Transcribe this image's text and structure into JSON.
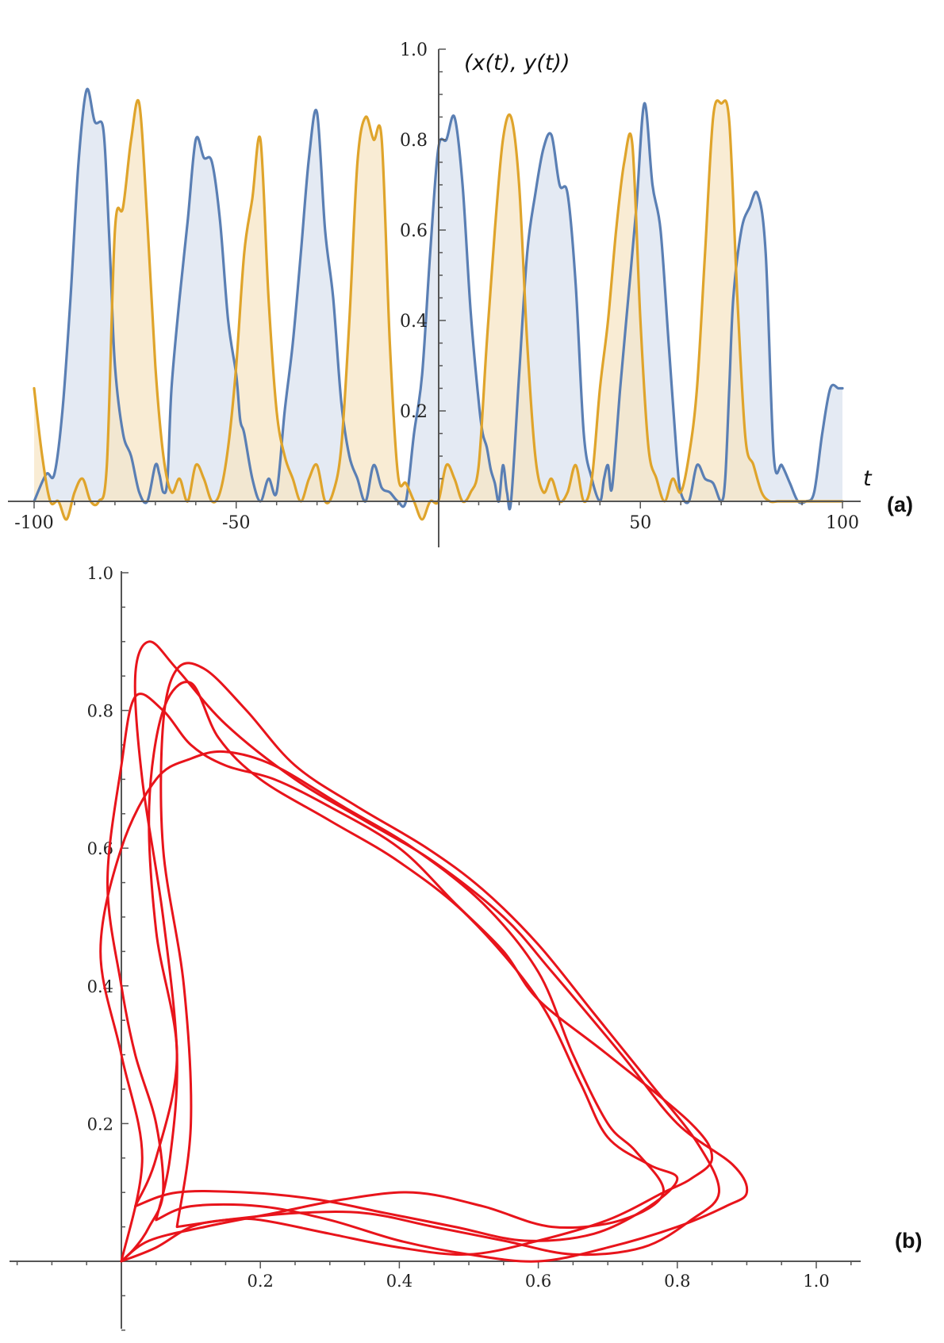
{
  "chart_data": [
    {
      "panel_label": "(a)",
      "type": "area",
      "xlabel": "t",
      "ylabel": "(x(t), y(t))",
      "xlim": [
        -100,
        100
      ],
      "ylim": [
        0,
        1.0
      ],
      "x_ticks": [
        -100,
        -50,
        50,
        100
      ],
      "x_tick_labels": [
        "-100",
        "-50",
        "50",
        "100"
      ],
      "y_ticks": [
        0.2,
        0.4,
        0.6,
        0.8,
        1.0
      ],
      "y_tick_labels": [
        "0.2",
        "0.4",
        "0.6",
        "0.8",
        "1.0"
      ],
      "colors": {
        "series_1": "#5a7fb4",
        "series_2": "#dfa42b",
        "fill_1": "#dbe3ef",
        "fill_2": "#f7e6c6"
      },
      "series": [
        {
          "t": [
            -100,
            -97,
            -95,
            -93,
            -91,
            -89,
            -87,
            -85,
            -83,
            -82,
            -81,
            -80,
            -78,
            -76,
            -74,
            -72,
            -70,
            -69,
            -68,
            -67,
            -66,
            -64,
            -62,
            -60,
            -58,
            -56,
            -54,
            -52,
            -50,
            -49,
            -48,
            -46,
            -44,
            -42,
            -40,
            -38,
            -36,
            -34,
            -32,
            -30,
            -28,
            -26,
            -24,
            -22,
            -20,
            -18,
            -16,
            -14,
            -12,
            -10,
            -8,
            -6,
            -4,
            -2,
            0,
            2,
            4,
            6,
            8,
            10,
            11,
            12,
            13,
            14,
            15,
            16,
            17,
            18,
            20,
            22,
            24,
            26,
            28,
            30,
            32,
            34,
            36,
            38,
            40,
            41,
            42,
            43,
            45,
            47,
            49,
            51,
            53,
            55,
            57,
            59,
            60,
            62,
            64,
            66,
            68,
            70,
            71,
            72,
            73,
            75,
            77,
            79,
            81,
            83,
            85,
            87,
            89,
            91,
            93,
            95,
            97,
            99,
            100
          ],
          "v": [
            0.0,
            0.06,
            0.06,
            0.2,
            0.45,
            0.75,
            0.91,
            0.84,
            0.83,
            0.7,
            0.5,
            0.3,
            0.15,
            0.1,
            0.02,
            0.0,
            0.08,
            0.06,
            0.02,
            0.05,
            0.25,
            0.45,
            0.62,
            0.8,
            0.76,
            0.75,
            0.62,
            0.4,
            0.28,
            0.18,
            0.15,
            0.05,
            0.0,
            0.05,
            0.02,
            0.2,
            0.35,
            0.55,
            0.76,
            0.86,
            0.6,
            0.45,
            0.22,
            0.1,
            0.05,
            0.0,
            0.08,
            0.03,
            0.02,
            0.0,
            0.0,
            0.15,
            0.28,
            0.55,
            0.78,
            0.8,
            0.85,
            0.7,
            0.42,
            0.22,
            0.15,
            0.12,
            0.07,
            0.04,
            0.0,
            0.08,
            0.02,
            0.0,
            0.28,
            0.55,
            0.68,
            0.78,
            0.81,
            0.7,
            0.68,
            0.48,
            0.15,
            0.05,
            0.0,
            0.05,
            0.08,
            0.03,
            0.25,
            0.45,
            0.65,
            0.88,
            0.7,
            0.6,
            0.35,
            0.1,
            0.02,
            0.0,
            0.08,
            0.05,
            0.04,
            0.0,
            0.05,
            0.25,
            0.45,
            0.6,
            0.65,
            0.68,
            0.55,
            0.1,
            0.08,
            0.04,
            0.0,
            0.0,
            0.02,
            0.15,
            0.25,
            0.25,
            0.25
          ]
        },
        {
          "t": [
            -100,
            -98,
            -96,
            -94,
            -92,
            -90,
            -88,
            -86,
            -84,
            -82,
            -80,
            -78,
            -76,
            -74,
            -72,
            -70,
            -68,
            -66,
            -64,
            -62,
            -60,
            -58,
            -56,
            -54,
            -52,
            -50,
            -48,
            -46,
            -44,
            -42,
            -40,
            -38,
            -36,
            -34,
            -32,
            -30,
            -28,
            -26,
            -24,
            -22,
            -20,
            -18,
            -16,
            -14,
            -12,
            -10,
            -8,
            -6,
            -4,
            -2,
            0,
            2,
            4,
            6,
            8,
            10,
            12,
            14,
            16,
            18,
            20,
            22,
            24,
            26,
            28,
            30,
            32,
            34,
            36,
            38,
            40,
            42,
            44,
            46,
            48,
            50,
            52,
            54,
            56,
            58,
            60,
            62,
            64,
            66,
            68,
            70,
            72,
            74,
            76,
            78,
            80,
            82,
            84,
            86,
            88,
            90,
            92,
            94,
            96,
            98,
            100
          ],
          "v": [
            0.25,
            0.1,
            0.0,
            0.0,
            -0.04,
            0.02,
            0.05,
            0.0,
            0.0,
            0.08,
            0.6,
            0.65,
            0.8,
            0.88,
            0.62,
            0.3,
            0.1,
            0.02,
            0.05,
            0.0,
            0.08,
            0.05,
            0.0,
            0.02,
            0.12,
            0.3,
            0.55,
            0.67,
            0.8,
            0.45,
            0.2,
            0.1,
            0.05,
            0.0,
            0.05,
            0.08,
            0.0,
            0.02,
            0.12,
            0.4,
            0.75,
            0.85,
            0.8,
            0.8,
            0.35,
            0.06,
            0.04,
            0.0,
            -0.04,
            0.0,
            0.0,
            0.08,
            0.05,
            0.0,
            0.02,
            0.08,
            0.35,
            0.6,
            0.8,
            0.85,
            0.7,
            0.35,
            0.1,
            0.02,
            0.05,
            0.0,
            0.02,
            0.08,
            0.0,
            0.05,
            0.25,
            0.4,
            0.6,
            0.75,
            0.79,
            0.4,
            0.12,
            0.05,
            0.0,
            0.05,
            0.02,
            0.1,
            0.25,
            0.55,
            0.85,
            0.88,
            0.84,
            0.45,
            0.14,
            0.08,
            0.02,
            0.0,
            0.0,
            0.0,
            0.0,
            0.0,
            0.0,
            0.0,
            0.0,
            0.0,
            0.0
          ]
        }
      ]
    },
    {
      "panel_label": "(b)",
      "type": "line",
      "xlim": [
        -0.17,
        1.05
      ],
      "ylim": [
        -0.15,
        1.0
      ],
      "x_ticks": [
        0.2,
        0.4,
        0.6,
        0.8,
        1.0
      ],
      "x_tick_labels": [
        "0.2",
        "0.4",
        "0.6",
        "0.8",
        "1.0"
      ],
      "y_ticks": [
        0.2,
        0.4,
        0.6,
        0.8,
        1.0
      ],
      "y_tick_labels": [
        "0.2",
        "0.4",
        "0.6",
        "0.8",
        "1.0"
      ],
      "colors": {
        "trajectory": "#e8141b"
      },
      "loops": [
        {
          "x": [
            0.0,
            0.05,
            0.1,
            0.15,
            0.2,
            0.3,
            0.4,
            0.5,
            0.6,
            0.7,
            0.78,
            0.82,
            0.85,
            0.82,
            0.7,
            0.6,
            0.55,
            0.48,
            0.4,
            0.3,
            0.22,
            0.15,
            0.1,
            0.06,
            0.02,
            0.0,
            -0.02,
            0.0,
            0.02,
            0.05,
            0.06,
            0.04,
            0.02,
            0.0
          ],
          "y": [
            0.0,
            0.02,
            0.05,
            0.06,
            0.06,
            0.04,
            0.02,
            0.01,
            0.03,
            0.06,
            0.1,
            0.12,
            0.15,
            0.2,
            0.3,
            0.38,
            0.45,
            0.52,
            0.6,
            0.66,
            0.7,
            0.72,
            0.75,
            0.8,
            0.82,
            0.72,
            0.55,
            0.4,
            0.3,
            0.2,
            0.1,
            0.05,
            0.02,
            0.0
          ]
        },
        {
          "x": [
            0.05,
            0.1,
            0.2,
            0.3,
            0.4,
            0.5,
            0.6,
            0.7,
            0.8,
            0.87,
            0.9,
            0.88,
            0.8,
            0.72,
            0.62,
            0.55,
            0.45,
            0.35,
            0.25,
            0.15,
            0.08,
            0.04,
            0.02,
            0.03,
            0.06,
            0.08,
            0.07,
            0.05
          ],
          "y": [
            0.06,
            0.08,
            0.08,
            0.06,
            0.03,
            0.01,
            0.0,
            0.02,
            0.05,
            0.08,
            0.1,
            0.14,
            0.2,
            0.3,
            0.42,
            0.5,
            0.58,
            0.64,
            0.7,
            0.78,
            0.86,
            0.9,
            0.85,
            0.7,
            0.5,
            0.3,
            0.15,
            0.06
          ]
        },
        {
          "x": [
            0.08,
            0.15,
            0.25,
            0.35,
            0.45,
            0.55,
            0.65,
            0.75,
            0.82,
            0.86,
            0.83,
            0.76,
            0.68,
            0.6,
            0.52,
            0.44,
            0.34,
            0.25,
            0.18,
            0.12,
            0.08,
            0.06,
            0.06,
            0.09,
            0.1,
            0.08
          ],
          "y": [
            0.05,
            0.06,
            0.07,
            0.07,
            0.05,
            0.03,
            0.01,
            0.02,
            0.06,
            0.1,
            0.17,
            0.26,
            0.36,
            0.46,
            0.54,
            0.6,
            0.66,
            0.72,
            0.8,
            0.86,
            0.86,
            0.78,
            0.6,
            0.4,
            0.2,
            0.05
          ]
        },
        {
          "x": [
            0.02,
            0.08,
            0.18,
            0.28,
            0.38,
            0.48,
            0.58,
            0.68,
            0.76,
            0.8,
            0.76,
            0.7,
            0.66,
            0.6,
            0.5,
            0.4,
            0.3,
            0.2,
            0.14,
            0.1,
            0.06,
            0.04,
            0.05,
            0.08,
            0.05,
            0.02
          ],
          "y": [
            0.08,
            0.1,
            0.1,
            0.09,
            0.07,
            0.05,
            0.03,
            0.04,
            0.08,
            0.12,
            0.14,
            0.18,
            0.26,
            0.38,
            0.5,
            0.58,
            0.64,
            0.7,
            0.76,
            0.84,
            0.8,
            0.66,
            0.48,
            0.3,
            0.15,
            0.08
          ]
        },
        {
          "x": [
            0.0,
            0.04,
            0.12,
            0.22,
            0.32,
            0.42,
            0.52,
            0.62,
            0.72,
            0.78,
            0.74,
            0.7,
            0.65,
            0.6,
            0.52,
            0.42,
            0.32,
            0.22,
            0.15,
            0.1,
            0.05,
            0.0,
            -0.03,
            0.0,
            0.03,
            0.0
          ],
          "y": [
            0.0,
            0.03,
            0.05,
            0.07,
            0.09,
            0.1,
            0.08,
            0.05,
            0.06,
            0.1,
            0.16,
            0.2,
            0.3,
            0.42,
            0.52,
            0.6,
            0.66,
            0.72,
            0.74,
            0.73,
            0.7,
            0.6,
            0.45,
            0.3,
            0.15,
            0.0
          ]
        }
      ]
    }
  ],
  "panel_labels": {
    "a": "(a)",
    "b": "(b)"
  },
  "panel_a_axis": {
    "xlabel": "t",
    "ylabel": "(x(t), y(t))"
  }
}
